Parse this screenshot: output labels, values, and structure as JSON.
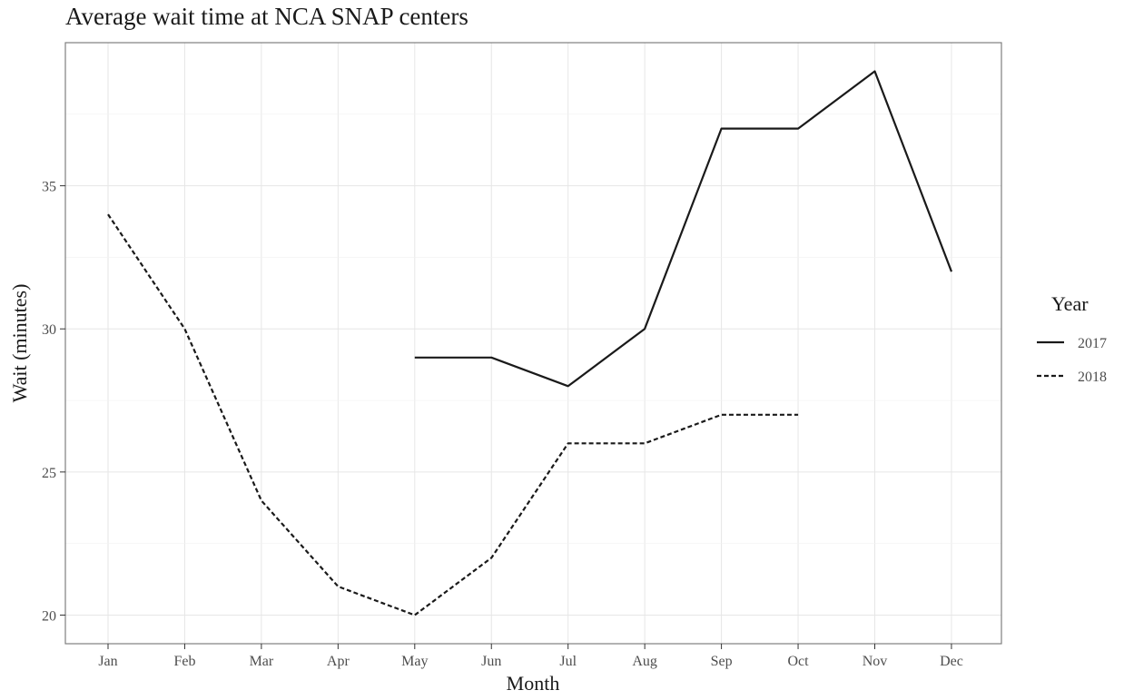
{
  "chart_data": {
    "type": "line",
    "title": "Average wait time at NCA SNAP centers",
    "xlabel": "Month",
    "ylabel": "Wait (minutes)",
    "categories": [
      "Jan",
      "Feb",
      "Mar",
      "Apr",
      "May",
      "Jun",
      "Jul",
      "Aug",
      "Sep",
      "Oct",
      "Nov",
      "Dec"
    ],
    "ylim": [
      19.0,
      40.0
    ],
    "yticks": [
      20,
      25,
      30,
      35
    ],
    "grid": true,
    "legend": {
      "title": "Year",
      "placement": "right"
    },
    "series": [
      {
        "name": "2017",
        "line_style": "solid",
        "values": [
          null,
          null,
          null,
          null,
          29,
          29,
          28,
          30,
          37,
          37,
          39,
          32
        ]
      },
      {
        "name": "2018",
        "line_style": "dashed",
        "values": [
          34,
          30,
          24,
          21,
          20,
          22,
          26,
          26,
          27,
          27,
          null,
          null
        ]
      }
    ]
  },
  "colors": {
    "line": "#1a1a1a",
    "grid": "#e6e6e6",
    "panel_border": "#7f7f7f",
    "tick_label": "#4d4d4d"
  }
}
